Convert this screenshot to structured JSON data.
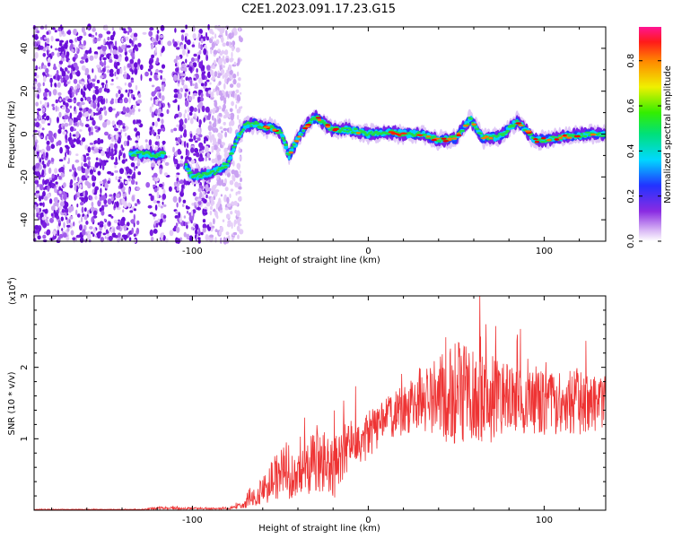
{
  "page_title": "C2E1.2023.091.17.23.G15",
  "chart_data": [
    {
      "type": "heatmap",
      "title": "C2E1.2023.091.17.23.G15",
      "xlabel": "Height of straight line (km)",
      "ylabel": "Frequency (Hz)",
      "xlim": [
        -190,
        135
      ],
      "ylim": [
        -50,
        50
      ],
      "x_ticks": [
        -100,
        0,
        100
      ],
      "y_ticks": [
        -40,
        -20,
        0,
        20,
        40
      ],
      "colorbar": {
        "label": "Normalized spectral amplitude",
        "range": [
          0,
          0.95
        ],
        "ticks": [
          0.0,
          0.2,
          0.4,
          0.6,
          0.8
        ],
        "colormap": "rainbow (white-violet-blue-cyan-green-yellow-red-magenta)"
      },
      "ridge": {
        "description": "peak frequency track versus height",
        "x": [
          -135,
          -120,
          -108,
          -100,
          -88,
          -80,
          -75,
          -70,
          -65,
          -60,
          -55,
          -50,
          -45,
          -40,
          -35,
          -30,
          -25,
          -20,
          -10,
          0,
          10,
          20,
          30,
          40,
          50,
          58,
          65,
          75,
          85,
          95,
          105,
          115,
          125,
          135
        ],
        "y": [
          -9,
          -10,
          -8,
          -20,
          -18,
          -14,
          -3,
          4,
          5,
          3,
          3,
          1,
          -10,
          -2,
          4,
          8,
          5,
          2,
          2,
          0,
          1,
          0,
          0,
          -3,
          -2,
          7,
          -2,
          -1,
          6,
          -3,
          -2,
          -1,
          0,
          0
        ]
      },
      "noise_region_x": [
        -190,
        -75
      ]
    },
    {
      "type": "line",
      "xlabel": "Height of straight line (km)",
      "ylabel": "SNR (10 * v/v)",
      "y_scale_note": "(x10^4)",
      "y_scale_base": "(x10",
      "y_scale_exp": "4",
      "y_scale_close": ")",
      "xlim": [
        -190,
        135
      ],
      "ylim": [
        0,
        3
      ],
      "x_ticks": [
        -100,
        0,
        100
      ],
      "y_ticks": [
        1,
        2,
        3
      ],
      "series": [
        {
          "color": "#ee3333",
          "envelope_x": [
            -190,
            -130,
            -120,
            -80,
            -70,
            -60,
            -50,
            -40,
            -30,
            -25,
            -20,
            -10,
            0,
            10,
            20,
            30,
            40,
            50,
            60,
            70,
            80,
            90,
            100,
            110,
            120,
            130,
            135
          ],
          "envelope_mean": [
            0.01,
            0.01,
            0.03,
            0.02,
            0.08,
            0.25,
            0.55,
            0.45,
            0.7,
            0.65,
            0.55,
            0.95,
            1.05,
            1.25,
            1.4,
            1.55,
            1.6,
            1.6,
            1.6,
            1.55,
            1.55,
            1.5,
            1.5,
            1.5,
            1.5,
            1.5,
            1.5
          ],
          "envelope_amp": [
            0.005,
            0.005,
            0.02,
            0.01,
            0.05,
            0.2,
            0.4,
            0.3,
            0.5,
            0.5,
            0.45,
            0.35,
            0.35,
            0.35,
            0.35,
            0.45,
            0.6,
            0.75,
            0.75,
            0.6,
            0.5,
            0.45,
            0.45,
            0.45,
            0.45,
            0.4,
            0.4
          ]
        }
      ]
    }
  ],
  "colors": {
    "snr_line": "#ee3333",
    "axis": "#000000",
    "background": "#ffffff"
  }
}
